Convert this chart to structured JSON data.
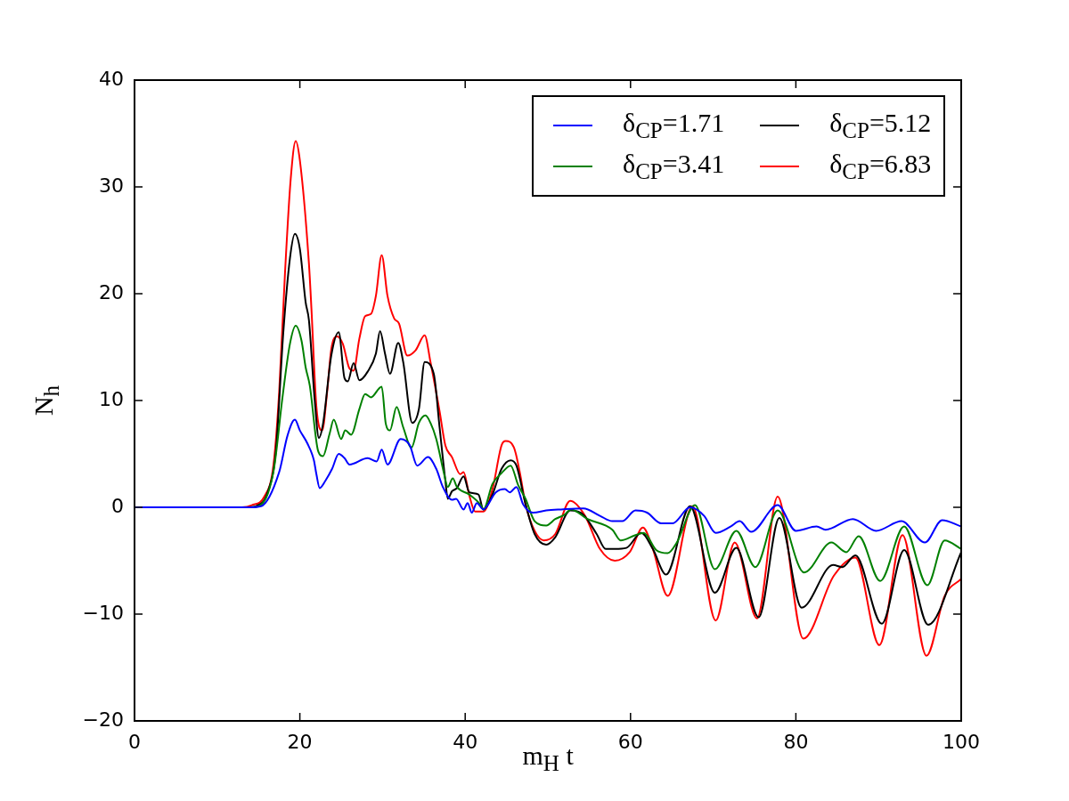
{
  "chart_data": {
    "type": "line",
    "xlabel": "m$_{H}$ t",
    "ylabel": "N$_{h}$",
    "xlim": [
      0,
      100
    ],
    "ylim": [
      -20,
      40
    ],
    "xticks": [
      0,
      20,
      40,
      60,
      80,
      100
    ],
    "yticks": [
      {
        "value": -20,
        "label": "−20"
      },
      {
        "value": -10,
        "label": "−10"
      },
      0,
      10,
      20,
      30,
      40
    ],
    "legend": "top right",
    "line_style": "solid",
    "marker": "none",
    "series": [
      {
        "name": "δ$_{CP}$=1.71",
        "color": "#0000ff",
        "x": [
          0,
          14,
          15.3,
          17.5,
          18.5,
          19.4,
          20,
          20.9,
          21.7,
          22,
          22.4,
          23.1,
          23.9,
          24.7,
          25.4,
          26,
          28.2,
          29.3,
          29.9,
          30.6,
          32.2,
          33.3,
          34.2,
          35.5,
          36.5,
          37.3,
          38.4,
          38.9,
          39.8,
          40.3,
          40.8,
          41.4,
          42.2,
          43.7,
          44.8,
          45.4,
          46.2,
          47,
          48.2,
          49.8,
          51.6,
          54.3,
          56.3,
          57.8,
          59,
          60.6,
          62,
          63.7,
          65.1,
          67.2,
          68.9,
          70.3,
          72.1,
          73.2,
          74.6,
          77.8,
          80,
          82.5,
          83.6,
          86.9,
          89.7,
          92.8,
          95.6,
          97.7,
          100
        ],
        "values": [
          0,
          0,
          0.1,
          3.3,
          6.7,
          8.2,
          7.2,
          6,
          4.4,
          3.1,
          1.8,
          2.5,
          3.6,
          5,
          4.6,
          4,
          4.6,
          4.3,
          5.4,
          4,
          6.4,
          5.8,
          3.9,
          4.7,
          3.6,
          1.9,
          0.7,
          0.8,
          -0.2,
          0.4,
          -0.5,
          0.4,
          -0.2,
          1.4,
          1.7,
          1.4,
          1.9,
          0.3,
          -0.5,
          -0.3,
          -0.2,
          -0.1,
          -0.8,
          -1.3,
          -1.3,
          -0.3,
          -0.5,
          -1.5,
          -1.5,
          0,
          -0.8,
          -2.4,
          -1.8,
          -1.3,
          -2.3,
          0.2,
          -2.2,
          -1.8,
          -2.1,
          -1.1,
          -2.2,
          -1.3,
          -3.3,
          -1.2,
          -1.8
        ]
      },
      {
        "name": "δ$_{CP}$=3.41",
        "color": "#008000",
        "x": [
          0,
          14,
          15,
          16.8,
          17.9,
          18.8,
          19.5,
          20.2,
          20.7,
          21.2,
          22.2,
          22.8,
          23.6,
          24.1,
          25,
          25.5,
          26.2,
          27.2,
          27.9,
          28.6,
          29.9,
          30.4,
          30.9,
          31.7,
          32.5,
          33.5,
          34.4,
          35.2,
          35.8,
          36.5,
          37.4,
          37.9,
          38.5,
          39,
          40.5,
          41.9,
          42.2,
          43.3,
          44.4,
          45.5,
          46.4,
          47.3,
          48.4,
          49.8,
          50.9,
          52,
          52.8,
          54.8,
          57.8,
          58.8,
          60.6,
          61.6,
          63.1,
          64.5,
          65.6,
          67.8,
          70.2,
          72.8,
          75.1,
          77.8,
          81,
          84.3,
          86.1,
          87.6,
          90.2,
          93.1,
          95.9,
          98,
          100
        ],
        "values": [
          0,
          0,
          0.1,
          3.3,
          10.3,
          15.3,
          17,
          15.6,
          13.1,
          11.4,
          5.3,
          4.8,
          6.9,
          8.2,
          6.4,
          7.2,
          6.8,
          9.2,
          10.6,
          10.3,
          11.3,
          7.8,
          7.2,
          9.4,
          7.5,
          5.6,
          7.9,
          8.6,
          7.9,
          6.4,
          3.3,
          1.9,
          2.7,
          1.9,
          1.2,
          0.2,
          -0.2,
          2.2,
          3.2,
          3.9,
          2.1,
          0.8,
          -1.3,
          -1.7,
          -1.1,
          -0.7,
          -0.2,
          -1.1,
          -2.1,
          -3.1,
          -2.6,
          -2.4,
          -4,
          -4.3,
          -3.3,
          0.2,
          -5.8,
          -2.2,
          -5.6,
          -0.3,
          -6.1,
          -3.3,
          -4.2,
          -2.7,
          -6.9,
          -1.8,
          -7.3,
          -3.1,
          -3.9
        ]
      },
      {
        "name": "δ$_{CP}$=5.12",
        "color": "#000000",
        "x": [
          0,
          14,
          14.7,
          16.1,
          17.1,
          18,
          18.8,
          19.4,
          20,
          20.7,
          21.1,
          21.8,
          22.3,
          22.8,
          23.8,
          24.7,
          25.4,
          25.8,
          26.5,
          27.2,
          28.2,
          29.2,
          29.7,
          30.3,
          30.9,
          31.9,
          32.5,
          33.6,
          34.4,
          35.1,
          36.2,
          36.9,
          37.6,
          37.9,
          38.4,
          39,
          39.8,
          40.5,
          41.6,
          42.2,
          43.3,
          44.4,
          45.5,
          46.2,
          47.3,
          48.4,
          49.8,
          50.9,
          52.7,
          54.3,
          55.9,
          57,
          58.1,
          59.5,
          61.3,
          62.7,
          64.3,
          67.2,
          70.2,
          72.8,
          75.5,
          78,
          80.7,
          84.5,
          85.6,
          87.2,
          90.4,
          93.1,
          96,
          100
        ],
        "values": [
          0,
          0,
          0.1,
          1.4,
          5.3,
          16.4,
          23.3,
          25.6,
          24.2,
          19.2,
          17.5,
          10,
          6.5,
          7.8,
          14.2,
          16.4,
          12.1,
          11.8,
          13.5,
          11.9,
          12.7,
          14.4,
          16.5,
          14.4,
          12.5,
          15.4,
          13.6,
          7.9,
          9.2,
          13.6,
          12.5,
          7.5,
          2.5,
          0.8,
          1.5,
          1.8,
          2.9,
          1.4,
          1.2,
          -0.2,
          1.2,
          3.6,
          4.4,
          3.9,
          0.3,
          -2.5,
          -3.5,
          -2.8,
          -0.3,
          -0.7,
          -2.5,
          -3.9,
          -3.9,
          -3.8,
          -2.4,
          -3.9,
          -6.3,
          0.1,
          -8,
          -3.8,
          -10.3,
          -1,
          -9.4,
          -5.4,
          -5.6,
          -4.5,
          -10.9,
          -4,
          -11,
          -4.2
        ]
      },
      {
        "name": "δ$_{CP}$=6.83",
        "color": "#ff0000",
        "x": [
          0,
          13,
          14.2,
          15.7,
          16.8,
          17.5,
          18.2,
          18.9,
          19.5,
          20,
          21.1,
          21.4,
          22,
          22.7,
          23.3,
          23.8,
          24.5,
          25.2,
          26,
          26.5,
          27.2,
          27.9,
          28.6,
          29.2,
          29.9,
          30.6,
          31.4,
          32,
          33,
          34,
          35.1,
          35.8,
          36.9,
          37.6,
          38.4,
          39.4,
          39.8,
          40.5,
          41.2,
          42.2,
          43.3,
          44.4,
          44.9,
          45.9,
          46.6,
          47.3,
          48.4,
          49.5,
          50.9,
          52.7,
          54.5,
          56.3,
          58.1,
          59.9,
          61.5,
          62.7,
          64.5,
          67.5,
          70.3,
          72.6,
          75.3,
          77.8,
          80.9,
          84.6,
          87.2,
          90.1,
          92.9,
          95.8,
          98,
          100
        ],
        "values": [
          0,
          0,
          0.2,
          1,
          3.9,
          10.8,
          21.9,
          30.8,
          34.3,
          32.5,
          22.8,
          18.6,
          9.4,
          7.2,
          10.8,
          14.8,
          16,
          15.3,
          13,
          12.8,
          15.8,
          17.9,
          18.1,
          19.8,
          23.6,
          19.8,
          17.7,
          17.2,
          14.2,
          14.7,
          16.1,
          13.6,
          9,
          5.8,
          4.7,
          3.1,
          3.3,
          1.1,
          -0.4,
          -0.4,
          1.7,
          5.8,
          6.2,
          5.6,
          3.3,
          0.3,
          -2.2,
          -3.1,
          -2.5,
          0.6,
          -0.8,
          -3.9,
          -5,
          -4.2,
          -1.9,
          -3.9,
          -8.3,
          0.1,
          -10.6,
          -3.3,
          -10.4,
          1,
          -12.3,
          -6.4,
          -4.7,
          -12.9,
          -2.6,
          -13.9,
          -8.3,
          -6.7
        ]
      }
    ]
  }
}
